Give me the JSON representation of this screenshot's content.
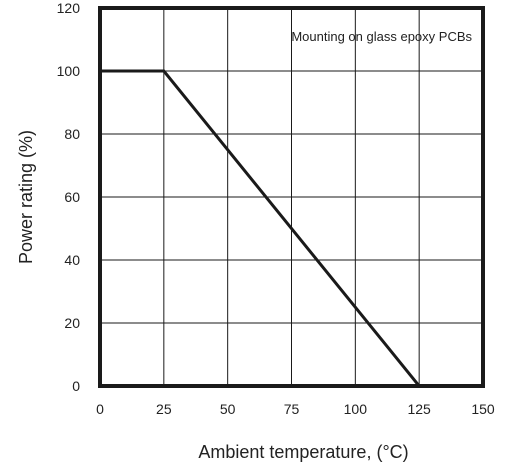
{
  "chart_data": {
    "type": "line",
    "title": "",
    "xlabel": "Ambient temperature, (°C)",
    "ylabel": "Power rating (%)",
    "xlim": [
      0,
      150
    ],
    "ylim": [
      0,
      120
    ],
    "xticks": [
      0,
      25,
      50,
      75,
      100,
      125,
      150
    ],
    "yticks": [
      0,
      20,
      40,
      60,
      80,
      100,
      120
    ],
    "grid": true,
    "annotation": "Mounting on glass epoxy PCBs",
    "series": [
      {
        "x": [
          0,
          25,
          125
        ],
        "y": [
          100,
          100,
          0
        ]
      }
    ]
  }
}
